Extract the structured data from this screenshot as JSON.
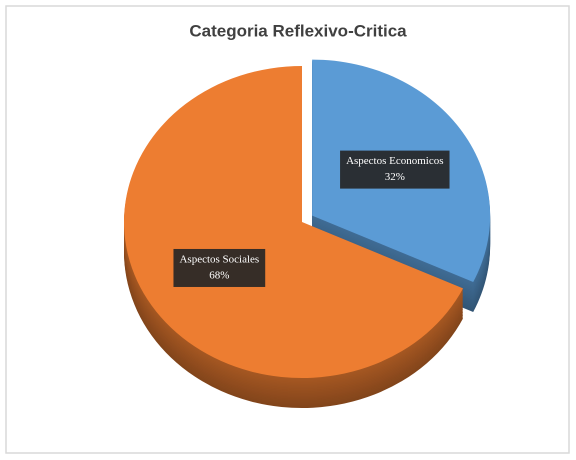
{
  "chart_data": {
    "type": "pie",
    "title": "Categoria Reflexivo-Critica",
    "categories": [
      "Aspectos Economicos",
      "Aspectos Sociales"
    ],
    "values": [
      32,
      68
    ],
    "value_labels": [
      "32%",
      "68%"
    ],
    "colors": [
      "#5b9bd5",
      "#ed7d31"
    ]
  }
}
